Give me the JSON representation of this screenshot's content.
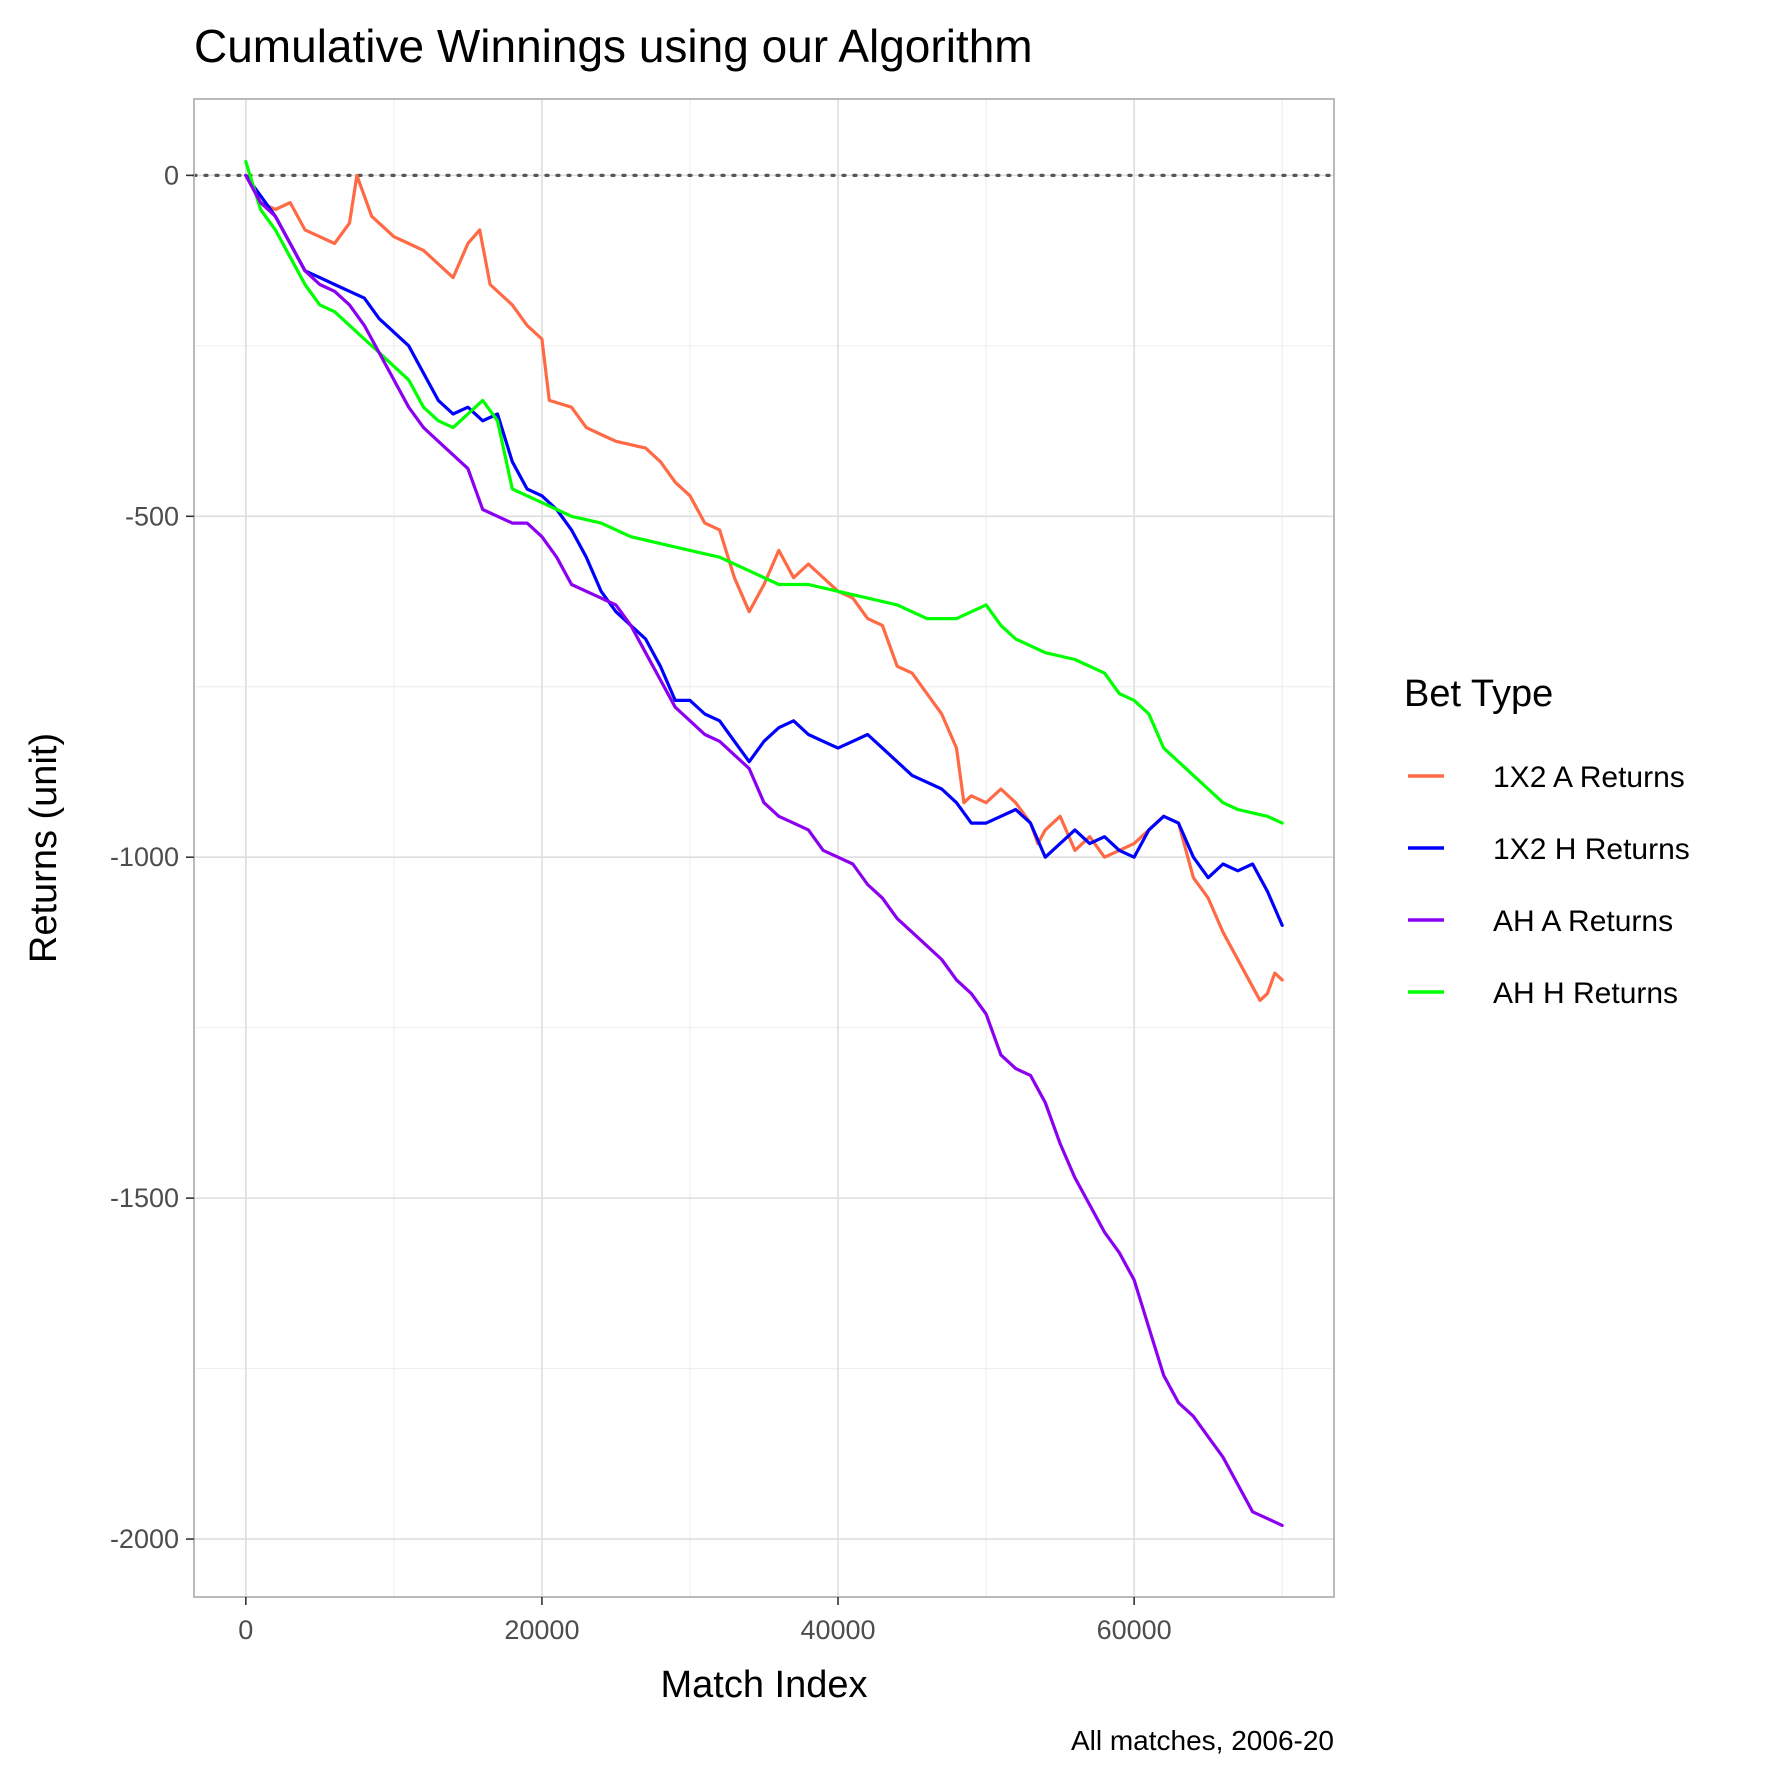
{
  "chart_data": {
    "type": "line",
    "title": "Cumulative Winnings using our Algorithm",
    "xlabel": "Match Index",
    "ylabel": "Returns (unit)",
    "caption": "All matches, 2006-20",
    "xlim": [
      -3500,
      73500
    ],
    "ylim": [
      -2085,
      112
    ],
    "xticks": [
      0,
      20000,
      40000,
      60000
    ],
    "xtick_labels": [
      "0",
      "20000",
      "40000",
      "60000"
    ],
    "yticks": [
      0,
      -500,
      -1000,
      -1500,
      -2000
    ],
    "ytick_labels": [
      "0",
      "-500",
      "-1000",
      "-1500",
      "-2000"
    ],
    "grid": true,
    "reference_line": {
      "y": 0,
      "style": "dotted",
      "color": "#555555"
    },
    "legend": {
      "title": "Bet Type",
      "position": "right"
    },
    "series": [
      {
        "name": "1X2 A Returns",
        "color": "#ff6a45",
        "x": [
          0,
          1000,
          2000,
          3000,
          4000,
          5000,
          6000,
          7000,
          7500,
          8500,
          10000,
          11000,
          12000,
          13000,
          14000,
          15000,
          15800,
          16500,
          18000,
          19000,
          20000,
          20500,
          22000,
          23000,
          24000,
          25000,
          27000,
          28000,
          29000,
          30000,
          31000,
          32000,
          33000,
          34000,
          35000,
          36000,
          37000,
          38000,
          40000,
          41000,
          42000,
          43000,
          44000,
          45000,
          46000,
          47000,
          48000,
          48500,
          49000,
          50000,
          51000,
          52000,
          53000,
          53500,
          54000,
          55000,
          56000,
          57000,
          58000,
          59000,
          60000,
          61000,
          62000,
          63000,
          64000,
          65000,
          66000,
          67000,
          68000,
          68500,
          69000,
          69500,
          70000
        ],
        "y": [
          0,
          -40,
          -50,
          -40,
          -80,
          -90,
          -100,
          -70,
          0,
          -60,
          -90,
          -100,
          -110,
          -130,
          -150,
          -100,
          -80,
          -160,
          -190,
          -220,
          -240,
          -330,
          -340,
          -370,
          -380,
          -390,
          -400,
          -420,
          -450,
          -470,
          -510,
          -520,
          -590,
          -640,
          -600,
          -550,
          -590,
          -570,
          -610,
          -620,
          -650,
          -660,
          -720,
          -730,
          -760,
          -790,
          -840,
          -920,
          -910,
          -920,
          -900,
          -920,
          -950,
          -980,
          -960,
          -940,
          -990,
          -970,
          -1000,
          -990,
          -980,
          -960,
          -940,
          -950,
          -1030,
          -1060,
          -1110,
          -1150,
          -1190,
          -1210,
          -1200,
          -1170,
          -1180
        ]
      },
      {
        "name": "1X2 H Returns",
        "color": "#0000ff",
        "x": [
          0,
          1000,
          2000,
          3000,
          4000,
          5000,
          6000,
          7000,
          8000,
          9000,
          10000,
          11000,
          12000,
          13000,
          14000,
          15000,
          16000,
          17000,
          18000,
          19000,
          20000,
          21000,
          22000,
          23000,
          24000,
          25000,
          26000,
          27000,
          28000,
          29000,
          30000,
          31000,
          32000,
          33000,
          34000,
          35000,
          36000,
          37000,
          38000,
          39000,
          40000,
          41000,
          42000,
          43000,
          44000,
          45000,
          46000,
          47000,
          48000,
          49000,
          50000,
          51000,
          52000,
          53000,
          54000,
          55000,
          56000,
          57000,
          58000,
          59000,
          60000,
          61000,
          62000,
          63000,
          64000,
          65000,
          66000,
          67000,
          68000,
          69000,
          70000
        ],
        "y": [
          0,
          -30,
          -60,
          -100,
          -140,
          -150,
          -160,
          -170,
          -180,
          -210,
          -230,
          -250,
          -290,
          -330,
          -350,
          -340,
          -360,
          -350,
          -420,
          -460,
          -470,
          -490,
          -520,
          -560,
          -610,
          -640,
          -660,
          -680,
          -720,
          -770,
          -770,
          -790,
          -800,
          -830,
          -860,
          -830,
          -810,
          -800,
          -820,
          -830,
          -840,
          -830,
          -820,
          -840,
          -860,
          -880,
          -890,
          -900,
          -920,
          -950,
          -950,
          -940,
          -930,
          -950,
          -1000,
          -980,
          -960,
          -980,
          -970,
          -990,
          -1000,
          -960,
          -940,
          -950,
          -1000,
          -1030,
          -1010,
          -1020,
          -1010,
          -1050,
          -1100
        ]
      },
      {
        "name": "AH A Returns",
        "color": "#8b00f0",
        "x": [
          0,
          1000,
          2000,
          3000,
          4000,
          5000,
          6000,
          7000,
          8000,
          9000,
          10000,
          11000,
          12000,
          13000,
          14000,
          15000,
          16000,
          17000,
          18000,
          19000,
          20000,
          21000,
          22000,
          23000,
          24000,
          25000,
          26000,
          27000,
          28000,
          29000,
          30000,
          31000,
          32000,
          33000,
          34000,
          35000,
          36000,
          37000,
          38000,
          39000,
          40000,
          41000,
          42000,
          43000,
          44000,
          45000,
          46000,
          47000,
          48000,
          49000,
          50000,
          51000,
          52000,
          53000,
          54000,
          55000,
          56000,
          57000,
          58000,
          59000,
          60000,
          61000,
          62000,
          63000,
          64000,
          65000,
          66000,
          67000,
          68000,
          69000,
          70000
        ],
        "y": [
          0,
          -40,
          -60,
          -100,
          -140,
          -160,
          -170,
          -190,
          -220,
          -260,
          -300,
          -340,
          -370,
          -390,
          -410,
          -430,
          -490,
          -500,
          -510,
          -510,
          -530,
          -560,
          -600,
          -610,
          -620,
          -630,
          -660,
          -700,
          -740,
          -780,
          -800,
          -820,
          -830,
          -850,
          -870,
          -920,
          -940,
          -950,
          -960,
          -990,
          -1000,
          -1010,
          -1040,
          -1060,
          -1090,
          -1110,
          -1130,
          -1150,
          -1180,
          -1200,
          -1230,
          -1290,
          -1310,
          -1320,
          -1360,
          -1420,
          -1470,
          -1510,
          -1550,
          -1580,
          -1620,
          -1690,
          -1760,
          -1800,
          -1820,
          -1850,
          -1880,
          -1920,
          -1960,
          -1970,
          -1980
        ]
      },
      {
        "name": "AH H Returns",
        "color": "#00ff00",
        "x": [
          0,
          1000,
          2000,
          3000,
          4000,
          5000,
          6000,
          7000,
          8000,
          9000,
          10000,
          11000,
          12000,
          13000,
          14000,
          15000,
          16000,
          17000,
          18000,
          19000,
          20000,
          22000,
          24000,
          26000,
          28000,
          30000,
          32000,
          34000,
          36000,
          38000,
          40000,
          42000,
          44000,
          46000,
          48000,
          50000,
          51000,
          52000,
          54000,
          56000,
          58000,
          59000,
          60000,
          61000,
          62000,
          64000,
          65000,
          66000,
          67000,
          68000,
          69000,
          70000
        ],
        "y": [
          20,
          -50,
          -80,
          -120,
          -160,
          -190,
          -200,
          -220,
          -240,
          -260,
          -280,
          -300,
          -340,
          -360,
          -370,
          -350,
          -330,
          -360,
          -460,
          -470,
          -480,
          -500,
          -510,
          -530,
          -540,
          -550,
          -560,
          -580,
          -600,
          -600,
          -610,
          -620,
          -630,
          -650,
          -650,
          -630,
          -660,
          -680,
          -700,
          -710,
          -730,
          -760,
          -770,
          -790,
          -840,
          -880,
          -900,
          -920,
          -930,
          -935,
          -940,
          -950
        ]
      }
    ]
  }
}
